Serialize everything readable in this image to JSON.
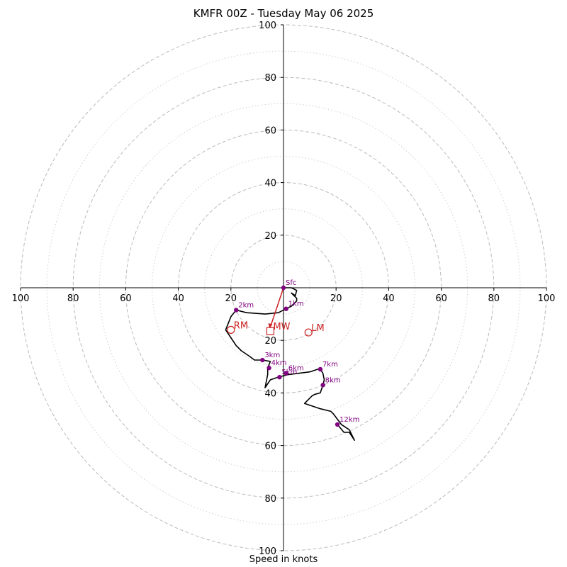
{
  "chart_data": {
    "type": "line",
    "title": "KMFR 00Z - Tuesday May 06 2025",
    "xlabel": "Speed in knots",
    "xlim": [
      -100,
      100
    ],
    "ylim": [
      -100,
      100
    ],
    "tick_labels": [
      "100",
      "80",
      "60",
      "40",
      "20",
      "20",
      "40",
      "60",
      "80",
      "100"
    ],
    "ring_radii_dashed": [
      20,
      40,
      60,
      80,
      100
    ],
    "ring_radii_dotted": [
      10,
      30,
      50,
      70,
      90
    ],
    "colors": {
      "hodograph": "#000000",
      "height_markers": "#800080",
      "storm_motion": "#cc2222",
      "rings": "#bbbbbb"
    },
    "hodograph": {
      "u": [
        0,
        3,
        5,
        4.5,
        3,
        5,
        5,
        3,
        1,
        -2,
        -7,
        -14,
        -18,
        -20,
        -22,
        -20,
        -18,
        -16,
        -13,
        -11,
        -8,
        -5,
        -6,
        -6,
        -7,
        -5,
        -2,
        2,
        6,
        10,
        13,
        14,
        15,
        15.5,
        15,
        14,
        12,
        11,
        8,
        11,
        14,
        18,
        19,
        20.5,
        22,
        25,
        27,
        25,
        23,
        20.5
      ],
      "v": [
        0,
        0,
        1,
        3,
        2,
        4,
        5,
        7,
        8,
        9.5,
        10,
        9.5,
        8.5,
        11,
        16,
        19,
        22,
        24,
        26,
        27.5,
        27.5,
        28,
        30.5,
        33,
        38,
        35,
        34,
        33,
        32.5,
        32,
        31,
        31,
        32.5,
        35,
        37,
        40,
        40.5,
        41,
        44,
        45,
        46,
        47,
        48,
        50,
        52,
        54,
        58,
        55,
        55,
        52
      ]
    },
    "height_markers": [
      {
        "label": "Sfc",
        "u": 0,
        "v": 0
      },
      {
        "label": "1km",
        "u": 1,
        "v": 8
      },
      {
        "label": "2km",
        "u": -18,
        "v": 8.5
      },
      {
        "label": "3km",
        "u": -8,
        "v": 27.5
      },
      {
        "label": "4km",
        "u": -5.5,
        "v": 30.5
      },
      {
        "label": "5km",
        "u": -1.5,
        "v": 34
      },
      {
        "label": "6km",
        "u": 1,
        "v": 32.5
      },
      {
        "label": "7km",
        "u": 14,
        "v": 31
      },
      {
        "label": "8km",
        "u": 15,
        "v": 37
      },
      {
        "label": "12km",
        "u": 20.5,
        "v": 52
      }
    ],
    "storm_motion": [
      {
        "label": "RM",
        "u": -20,
        "v": 16,
        "marker": "circle"
      },
      {
        "label": "MW",
        "u": -5,
        "v": 16.5,
        "marker": "square"
      },
      {
        "label": "LM",
        "u": 9.5,
        "v": 17,
        "marker": "circle"
      }
    ]
  }
}
